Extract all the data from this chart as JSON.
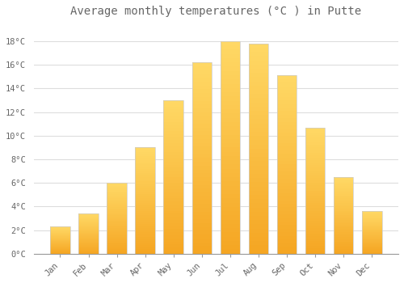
{
  "title": "Average monthly temperatures (°C ) in Putte",
  "months": [
    "Jan",
    "Feb",
    "Mar",
    "Apr",
    "May",
    "Jun",
    "Jul",
    "Aug",
    "Sep",
    "Oct",
    "Nov",
    "Dec"
  ],
  "values": [
    2.3,
    3.4,
    6.0,
    9.0,
    13.0,
    16.2,
    18.0,
    17.8,
    15.1,
    10.7,
    6.5,
    3.6
  ],
  "bar_color_bottom": "#F5A623",
  "bar_color_top": "#FFD966",
  "bar_edge_color": "#CCCCCC",
  "background_color": "#FFFFFF",
  "grid_color": "#DDDDDD",
  "text_color": "#666666",
  "ylim": [
    0,
    19.5
  ],
  "yticks": [
    0,
    2,
    4,
    6,
    8,
    10,
    12,
    14,
    16,
    18
  ],
  "title_fontsize": 10,
  "bar_width": 0.7
}
